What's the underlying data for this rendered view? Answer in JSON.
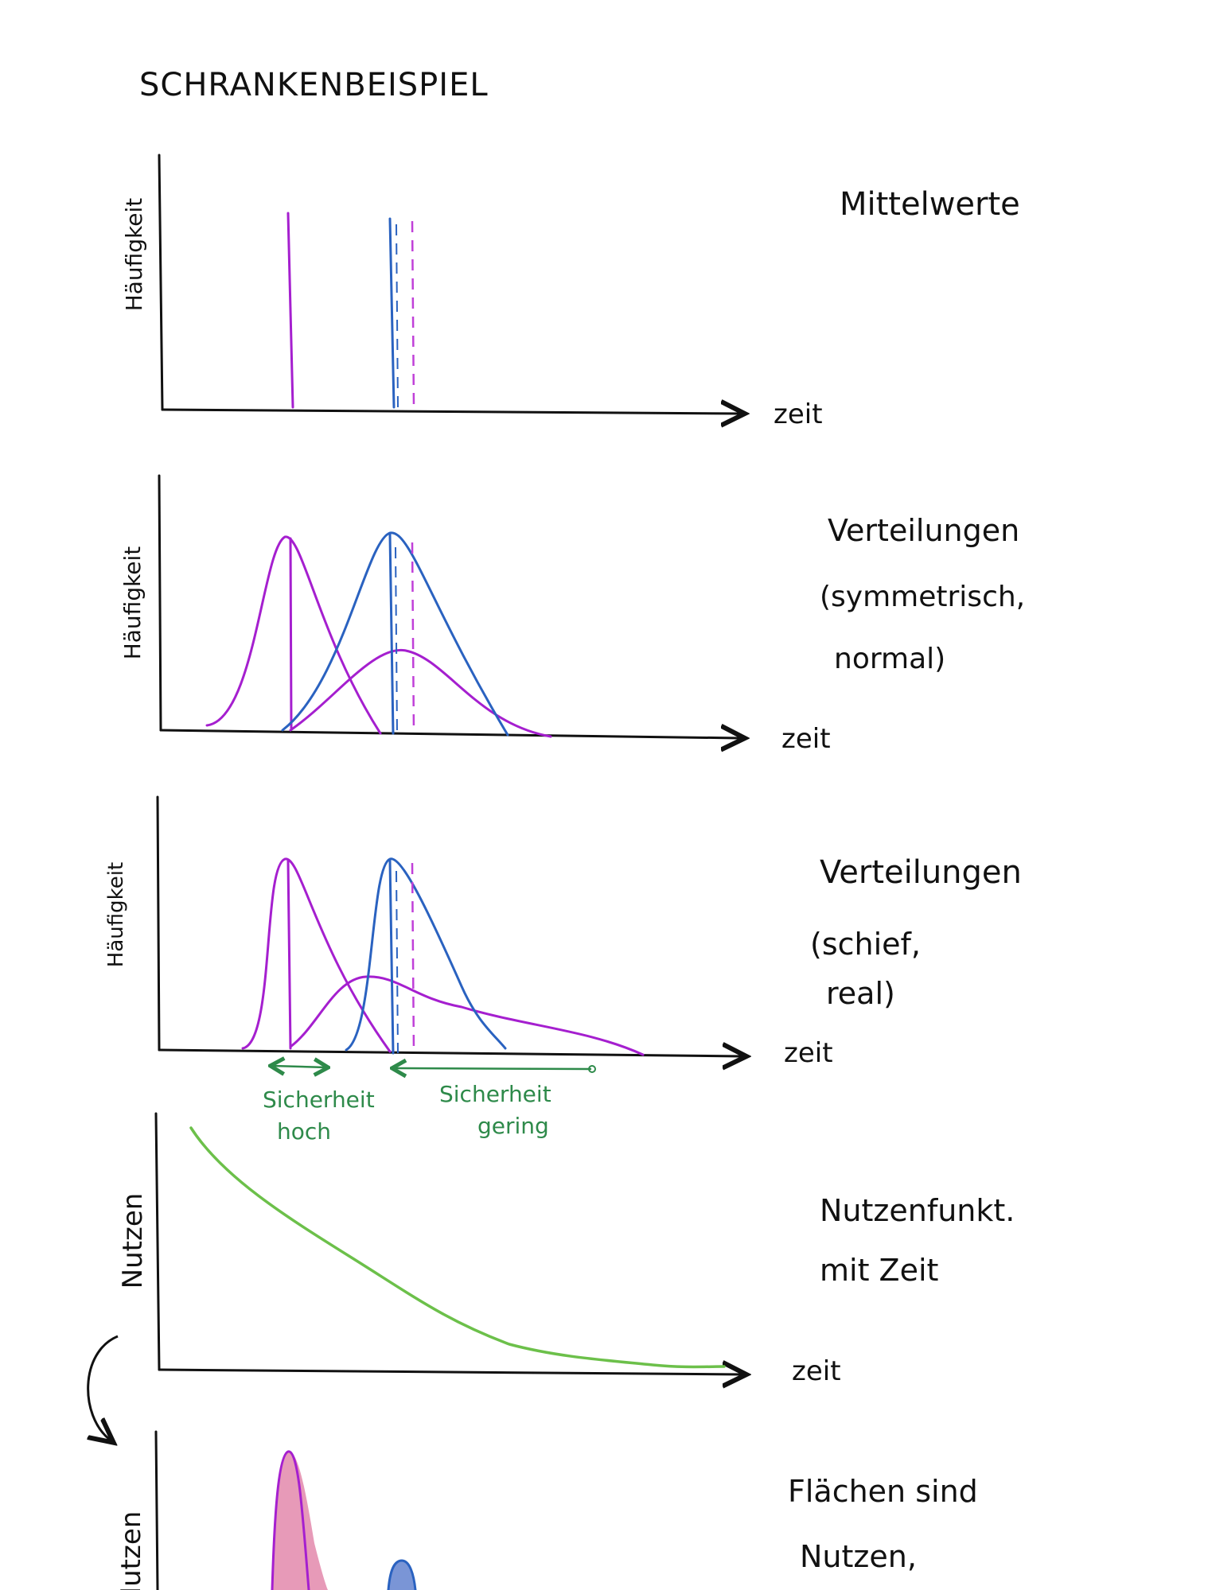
{
  "title": "SCHRANKENBEISPIEL",
  "panels": [
    {
      "ylabel": "Häufigkeit",
      "xlabel": "zeit",
      "caption_lines": [
        "Mittelwerte"
      ]
    },
    {
      "ylabel": "Häufigkeit",
      "xlabel": "zeit",
      "caption_lines": [
        "Verteilungen",
        "(symmetrisch,",
        "normal)"
      ]
    },
    {
      "ylabel": "Häufigkeit",
      "xlabel": "zeit",
      "caption_lines": [
        "Verteilungen",
        "(schief,",
        "real)"
      ]
    },
    {
      "ylabel": "Nutzen",
      "xlabel": "zeit",
      "caption_lines": [
        "Nutzenfunkt.",
        "mit Zeit"
      ]
    },
    {
      "ylabel": "Nutzen",
      "xlabel": "",
      "caption_lines": [
        "Flächen sind",
        "Nutzen,"
      ]
    }
  ],
  "annotations": {
    "certainty_high": [
      "Sicherheit",
      "hoch"
    ],
    "certainty_low": [
      "Sicherheit",
      "gering"
    ]
  },
  "colors": {
    "ink": "#111111",
    "purple": "#a51fcf",
    "blue": "#2a62c0",
    "green_curve": "#6cc04a",
    "green_annotation": "#2e8a4a",
    "pink_fill": "#e79ab8",
    "blue_fill": "#7a95d6"
  }
}
